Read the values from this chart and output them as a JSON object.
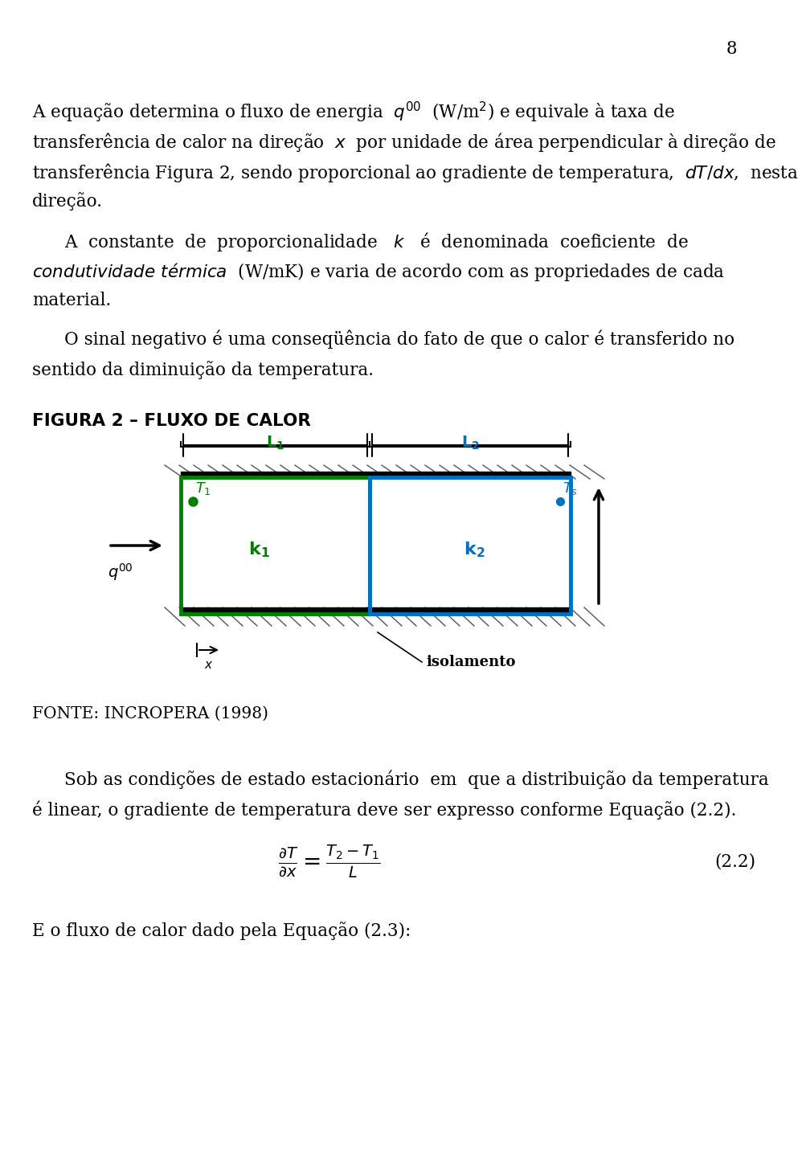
{
  "page_number": "8",
  "bg_color": "#ffffff",
  "text_color": "#000000",
  "para1_line1": "A equação determina o fluxo de energia  $q''$  (W/m$^2$) e equivale à taxa de",
  "para1_line2": "transferência de calor na direção  $x$  por unidade de área perpendicular à direção de",
  "para1_line3": "transferência Figura 2, sendo proporcional ao gradiente de temperatura,  $dT/dx$,  nesta",
  "para1_line4": "direção.",
  "para2_line1": "A  constante  de  proporcionalidade   $k$   é  denominada  coeficiente  de",
  "para2_line2": "$\\it{condutividade\\ térmica}$  (W/mK) e varia de acordo com as propriedades de cada",
  "para2_line3": "material.",
  "para3_line1": "O sinal negativo é uma conseqüência do fato de que o calor é transferido no",
  "para3_line2": "sentido da diminuição da temperatura.",
  "fig_label": "FIGURA 2 – FLUXO DE CALOR",
  "fonte_label": "FONTE: INCROPERA (1998)",
  "para4_line1": "Sob as condições de estado estacionário  em  que a distribuição da temperatura",
  "para4_line2": "é linear, o gradiente de temperatura deve ser expresso conforme Equação (2.2).",
  "eq_label": "(2.2)",
  "para5": "E o fluxo de calor dado pela Equação (2.3):",
  "green_color": "#008000",
  "blue_color": "#0070C0",
  "black_color": "#000000",
  "hatch_color": "#555555"
}
